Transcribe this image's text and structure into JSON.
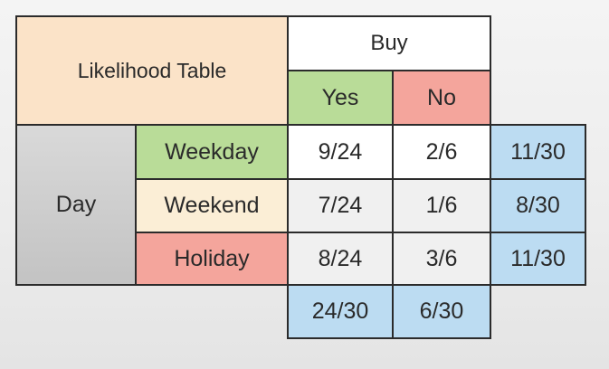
{
  "table": {
    "title": "Likelihood Table",
    "buy_header": "Buy",
    "columns": [
      "Yes",
      "No"
    ],
    "row_group_label": "Day",
    "rows": [
      {
        "label": "Weekday",
        "yes": "9/24",
        "no": "2/6",
        "total": "11/30"
      },
      {
        "label": "Weekend",
        "yes": "7/24",
        "no": "1/6",
        "total": "8/30"
      },
      {
        "label": "Holiday",
        "yes": "8/24",
        "no": "3/6",
        "total": "11/30"
      }
    ],
    "column_totals": {
      "yes": "24/30",
      "no": "6/30"
    }
  }
}
